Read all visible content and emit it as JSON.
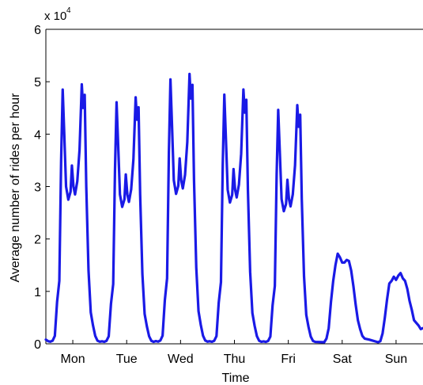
{
  "chart_data": {
    "type": "line",
    "xlabel": "Time",
    "ylabel": "Average number of rides per hour",
    "y_multiplier_label": "x 10",
    "y_multiplier_exponent": "4",
    "ylim": [
      0,
      6
    ],
    "xlim": [
      0,
      168
    ],
    "y_ticks": [
      0,
      1,
      2,
      3,
      4,
      5,
      6
    ],
    "x_ticks": [
      {
        "x": 12,
        "label": "Mon"
      },
      {
        "x": 36,
        "label": "Tue"
      },
      {
        "x": 60,
        "label": "Wed"
      },
      {
        "x": 84,
        "label": "Thu"
      },
      {
        "x": 108,
        "label": "Fri"
      },
      {
        "x": 132,
        "label": "Sat"
      },
      {
        "x": 156,
        "label": "Sun"
      }
    ],
    "grid": false,
    "line_color": "#1a1ae6",
    "weekday_template": [
      [
        0,
        0.08
      ],
      [
        1,
        0.05
      ],
      [
        2,
        0.04
      ],
      [
        3,
        0.06
      ],
      [
        4,
        0.15
      ],
      [
        5,
        0.8
      ],
      [
        6,
        1.2
      ],
      [
        6.8,
        3.5
      ],
      [
        7.5,
        4.85
      ],
      [
        8.2,
        4.0
      ],
      [
        9,
        3.0
      ],
      [
        10,
        2.75
      ],
      [
        11,
        2.9
      ],
      [
        11.6,
        3.4
      ],
      [
        12.3,
        3.0
      ],
      [
        13,
        2.85
      ],
      [
        14,
        3.1
      ],
      [
        15,
        3.7
      ],
      [
        16,
        4.95
      ],
      [
        16.6,
        4.5
      ],
      [
        17.3,
        4.75
      ],
      [
        18,
        3.0
      ],
      [
        19,
        1.4
      ],
      [
        20,
        0.6
      ],
      [
        21,
        0.35
      ],
      [
        22,
        0.15
      ],
      [
        23,
        0.06
      ],
      [
        24,
        0.04
      ]
    ],
    "weekday_scales": [
      1.0,
      0.95,
      1.04,
      0.98,
      0.92
    ],
    "weekend_days": [
      [
        [
          0,
          0.04
        ],
        [
          4,
          0.03
        ],
        [
          5,
          0.1
        ],
        [
          6,
          0.3
        ],
        [
          7,
          0.8
        ],
        [
          8,
          1.2
        ],
        [
          9,
          1.5
        ],
        [
          10,
          1.72
        ],
        [
          11,
          1.65
        ],
        [
          12,
          1.55
        ],
        [
          13,
          1.55
        ],
        [
          14,
          1.6
        ],
        [
          15,
          1.58
        ],
        [
          16,
          1.4
        ],
        [
          17,
          1.1
        ],
        [
          18,
          0.75
        ],
        [
          19,
          0.45
        ],
        [
          20,
          0.28
        ],
        [
          21,
          0.15
        ],
        [
          22,
          0.1
        ],
        [
          24,
          0.08
        ]
      ],
      [
        [
          0,
          0.06
        ],
        [
          4,
          0.03
        ],
        [
          5,
          0.05
        ],
        [
          6,
          0.2
        ],
        [
          7,
          0.5
        ],
        [
          8,
          0.85
        ],
        [
          9,
          1.15
        ],
        [
          10,
          1.2
        ],
        [
          11,
          1.28
        ],
        [
          12,
          1.22
        ],
        [
          13,
          1.3
        ],
        [
          14,
          1.35
        ],
        [
          15,
          1.25
        ],
        [
          16,
          1.2
        ],
        [
          17,
          1.05
        ],
        [
          18,
          0.82
        ],
        [
          19,
          0.65
        ],
        [
          20,
          0.45
        ],
        [
          21,
          0.4
        ],
        [
          22,
          0.35
        ],
        [
          23,
          0.28
        ],
        [
          24,
          0.3
        ]
      ]
    ]
  }
}
